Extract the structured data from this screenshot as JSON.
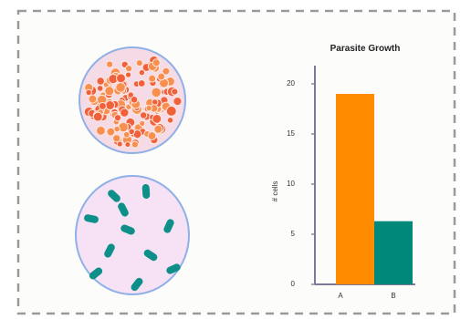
{
  "chart_data": {
    "type": "bar",
    "title": "Parasite Growth",
    "y_label": "# cells",
    "categories": [
      "A",
      "B"
    ],
    "values": [
      19,
      6.3
    ],
    "colors": [
      "#ff8c00",
      "#00897b"
    ],
    "ylim": [
      0,
      20
    ],
    "yticks": [
      0,
      5,
      10,
      15,
      20
    ],
    "grid": false
  }
}
